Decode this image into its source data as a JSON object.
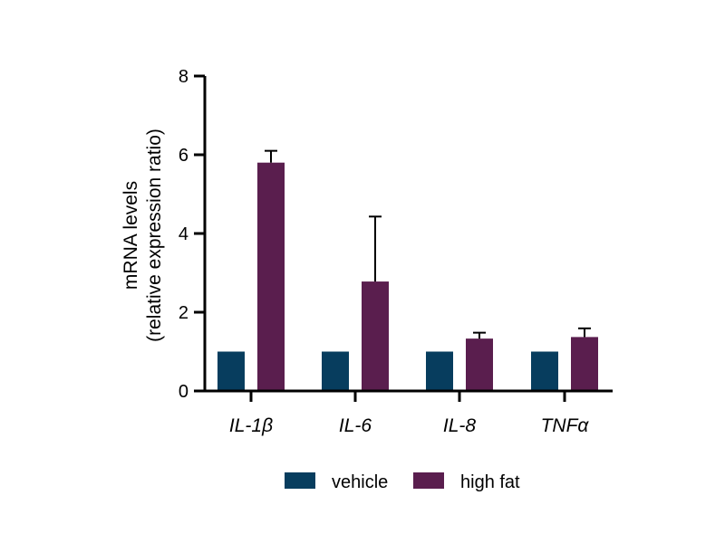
{
  "chart_data": {
    "type": "bar",
    "title": "",
    "xlabel": "",
    "ylabel_line1": "mRNA levels",
    "ylabel_line2": "(relative expression ratio)",
    "ylim": [
      0,
      8
    ],
    "yticks": [
      0,
      2,
      4,
      6,
      8
    ],
    "yticks_labels": [
      "0",
      "2",
      "4",
      "6",
      "8"
    ],
    "categories": [
      "IL-1β",
      "IL-6",
      "IL-8",
      "TNFα"
    ],
    "series": [
      {
        "name": "vehicle",
        "color": "#073d5e",
        "values": [
          1.0,
          1.0,
          1.0,
          1.0
        ],
        "errors": [
          0,
          0,
          0,
          0
        ]
      },
      {
        "name": "high fat",
        "color": "#5a1e4e",
        "values": [
          5.8,
          2.78,
          1.33,
          1.37
        ],
        "errors": [
          0.3,
          1.65,
          0.15,
          0.22
        ]
      }
    ],
    "legend_position": "bottom"
  }
}
